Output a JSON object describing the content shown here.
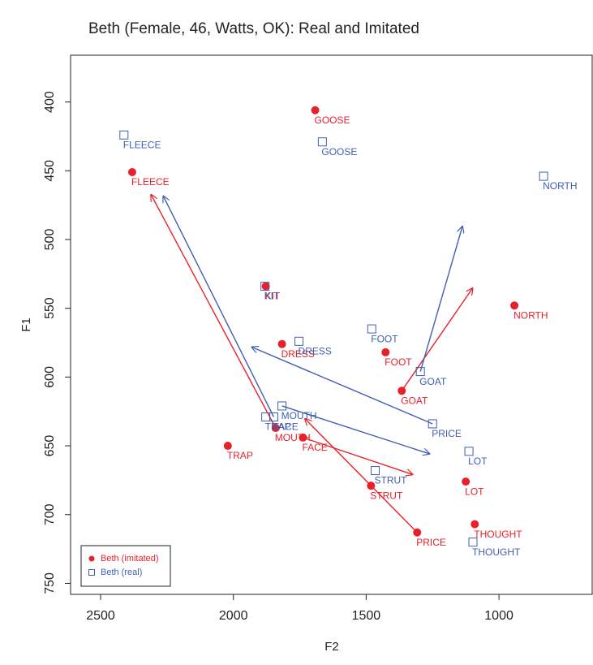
{
  "chart_data": {
    "type": "scatter",
    "title": "Beth (Female, 46, Watts, OK): Real and Imitated",
    "x_label": "F2",
    "y_label": "F1",
    "xlim": [
      2613,
      649
    ],
    "ylim": [
      366,
      758
    ],
    "xticks": [
      2500,
      2000,
      1500,
      1000
    ],
    "yticks": [
      400,
      450,
      500,
      550,
      600,
      650,
      700,
      750
    ],
    "legend_position": "bottom-left",
    "series": [
      {
        "name": "Beth (imitated)",
        "color": "#e8202a",
        "marker": "circle",
        "labels": [
          "GOOSE",
          "FLEECE",
          "KIT",
          "NORTH",
          "DRESS",
          "FOOT",
          "GOAT",
          "MOUTH",
          "FACE",
          "TRAP",
          "STRUT",
          "LOT",
          "PRICE",
          "THOUGHT"
        ],
        "x": [
          1692,
          2381,
          1878,
          942,
          1817,
          1427,
          1366,
          1841,
          1738,
          2021,
          1482,
          1125,
          1308,
          1091
        ],
        "y": [
          406,
          451,
          534,
          548,
          576,
          582,
          610,
          637,
          644,
          650,
          679,
          676,
          713,
          707
        ],
        "arrows": [
          {
            "x": [
              1738,
              1323
            ],
            "y": [
              644,
              671
            ]
          },
          {
            "x": [
              1308,
              1732
            ],
            "y": [
              713,
              630
            ]
          },
          {
            "x": [
              1841,
              2311
            ],
            "y": [
              637,
              467
            ]
          },
          {
            "x": [
              1366,
              1098
            ],
            "y": [
              610,
              535
            ]
          }
        ]
      },
      {
        "name": "Beth (real)",
        "color": "#3f5fb0",
        "marker": "square",
        "labels": [
          "FLEECE",
          "GOOSE",
          "NORTH",
          "KIT",
          "DRESS",
          "FOOT",
          "GOAT",
          "PRICE",
          "MOUTH",
          "TRAP",
          "FACE",
          "LOT",
          "STRUT",
          "THOUGHT"
        ],
        "x": [
          2412,
          1665,
          832,
          1881,
          1753,
          1479,
          1296,
          1250,
          1817,
          1878,
          1848,
          1113,
          1466,
          1098
        ],
        "y": [
          424,
          429,
          454,
          534,
          574,
          565,
          596,
          634,
          621,
          629,
          629,
          654,
          668,
          720
        ],
        "arrows": [
          {
            "x": [
              1817,
              1259
            ],
            "y": [
              621,
              656
            ]
          },
          {
            "x": [
              1250,
              1933
            ],
            "y": [
              634,
              578
            ]
          },
          {
            "x": [
              1296,
              1137
            ],
            "y": [
              596,
              490
            ]
          },
          {
            "x": [
              1848,
              2265
            ],
            "y": [
              629,
              468
            ]
          }
        ]
      }
    ]
  }
}
